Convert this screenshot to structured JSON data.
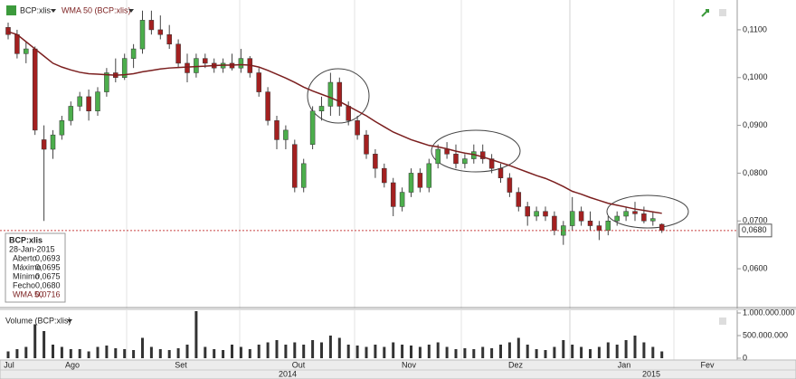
{
  "chart_data": {
    "type": "candlestick",
    "header": {
      "symbol": "BCP:xlis",
      "indicator": "WMA 50 (BCP:xlis)",
      "volume_title": "Volume (BCP:xlis)"
    },
    "ohlc": [
      [
        0.1105,
        0.1115,
        0.108,
        0.109
      ],
      [
        0.109,
        0.11,
        0.104,
        0.105
      ],
      [
        0.105,
        0.1075,
        0.103,
        0.106
      ],
      [
        0.106,
        0.1065,
        0.088,
        0.089
      ],
      [
        0.087,
        0.09,
        0.07,
        0.085
      ],
      [
        0.085,
        0.089,
        0.083,
        0.088
      ],
      [
        0.088,
        0.092,
        0.087,
        0.091
      ],
      [
        0.091,
        0.095,
        0.09,
        0.094
      ],
      [
        0.094,
        0.097,
        0.093,
        0.096
      ],
      [
        0.096,
        0.0975,
        0.091,
        0.093
      ],
      [
        0.093,
        0.098,
        0.092,
        0.097
      ],
      [
        0.097,
        0.102,
        0.096,
        0.101
      ],
      [
        0.101,
        0.104,
        0.099,
        0.1
      ],
      [
        0.1,
        0.105,
        0.0995,
        0.104
      ],
      [
        0.104,
        0.107,
        0.102,
        0.106
      ],
      [
        0.106,
        0.114,
        0.105,
        0.112
      ],
      [
        0.112,
        0.114,
        0.109,
        0.11
      ],
      [
        0.11,
        0.113,
        0.108,
        0.109
      ],
      [
        0.109,
        0.111,
        0.106,
        0.107
      ],
      [
        0.107,
        0.108,
        0.102,
        0.103
      ],
      [
        0.103,
        0.105,
        0.099,
        0.101
      ],
      [
        0.101,
        0.105,
        0.1,
        0.104
      ],
      [
        0.104,
        0.105,
        0.102,
        0.103
      ],
      [
        0.103,
        0.104,
        0.101,
        0.102
      ],
      [
        0.102,
        0.104,
        0.101,
        0.103
      ],
      [
        0.103,
        0.105,
        0.1015,
        0.102
      ],
      [
        0.102,
        0.106,
        0.101,
        0.104
      ],
      [
        0.104,
        0.1045,
        0.1,
        0.101
      ],
      [
        0.101,
        0.102,
        0.096,
        0.097
      ],
      [
        0.097,
        0.098,
        0.09,
        0.091
      ],
      [
        0.091,
        0.092,
        0.085,
        0.087
      ],
      [
        0.087,
        0.09,
        0.085,
        0.089
      ],
      [
        0.086,
        0.087,
        0.076,
        0.077
      ],
      [
        0.077,
        0.083,
        0.076,
        0.082
      ],
      [
        0.086,
        0.094,
        0.085,
        0.093
      ],
      [
        0.093,
        0.096,
        0.091,
        0.094
      ],
      [
        0.094,
        0.101,
        0.092,
        0.099
      ],
      [
        0.099,
        0.1,
        0.092,
        0.094
      ],
      [
        0.094,
        0.095,
        0.09,
        0.091
      ],
      [
        0.091,
        0.092,
        0.087,
        0.088
      ],
      [
        0.088,
        0.089,
        0.083,
        0.084
      ],
      [
        0.084,
        0.085,
        0.079,
        0.081
      ],
      [
        0.081,
        0.082,
        0.077,
        0.078
      ],
      [
        0.078,
        0.079,
        0.071,
        0.073
      ],
      [
        0.073,
        0.077,
        0.072,
        0.076
      ],
      [
        0.076,
        0.081,
        0.075,
        0.08
      ],
      [
        0.08,
        0.081,
        0.076,
        0.077
      ],
      [
        0.077,
        0.083,
        0.076,
        0.082
      ],
      [
        0.082,
        0.086,
        0.081,
        0.085
      ],
      [
        0.085,
        0.0865,
        0.083,
        0.084
      ],
      [
        0.084,
        0.086,
        0.081,
        0.082
      ],
      [
        0.082,
        0.084,
        0.081,
        0.083
      ],
      [
        0.083,
        0.086,
        0.082,
        0.0845
      ],
      [
        0.0845,
        0.086,
        0.082,
        0.083
      ],
      [
        0.083,
        0.084,
        0.08,
        0.081
      ],
      [
        0.081,
        0.082,
        0.078,
        0.079
      ],
      [
        0.079,
        0.08,
        0.075,
        0.076
      ],
      [
        0.076,
        0.077,
        0.072,
        0.073
      ],
      [
        0.073,
        0.074,
        0.069,
        0.071
      ],
      [
        0.071,
        0.073,
        0.07,
        0.072
      ],
      [
        0.072,
        0.073,
        0.07,
        0.071
      ],
      [
        0.071,
        0.072,
        0.067,
        0.068
      ],
      [
        0.067,
        0.07,
        0.065,
        0.069
      ],
      [
        0.069,
        0.075,
        0.068,
        0.072
      ],
      [
        0.072,
        0.073,
        0.069,
        0.07
      ],
      [
        0.07,
        0.072,
        0.068,
        0.069
      ],
      [
        0.069,
        0.07,
        0.066,
        0.068
      ],
      [
        0.068,
        0.071,
        0.067,
        0.07
      ],
      [
        0.07,
        0.072,
        0.069,
        0.071
      ],
      [
        0.071,
        0.073,
        0.07,
        0.072
      ],
      [
        0.072,
        0.074,
        0.07,
        0.0715
      ],
      [
        0.0715,
        0.073,
        0.0695,
        0.07
      ],
      [
        0.07,
        0.072,
        0.069,
        0.0705
      ],
      [
        0.0693,
        0.0695,
        0.0675,
        0.068
      ]
    ],
    "wma": {
      "name": "WMA 50",
      "color": "#7b1f1f",
      "values": [
        0.1096,
        0.109,
        0.1075,
        0.106,
        0.1045,
        0.103,
        0.1022,
        0.1016,
        0.1011,
        0.1008,
        0.1007,
        0.1006,
        0.1005,
        0.1006,
        0.1008,
        0.1012,
        0.1015,
        0.1018,
        0.102,
        0.1021,
        0.1022,
        0.1023,
        0.1024,
        0.1025,
        0.1026,
        0.1026,
        0.1027,
        0.1026,
        0.1022,
        0.1015,
        0.1007,
        0.0999,
        0.099,
        0.098,
        0.0972,
        0.0965,
        0.0958,
        0.095,
        0.094,
        0.093,
        0.092,
        0.0908,
        0.0897,
        0.0886,
        0.0878,
        0.087,
        0.0864,
        0.0858,
        0.0855,
        0.0851,
        0.0846,
        0.0842,
        0.0839,
        0.0834,
        0.0828,
        0.0822,
        0.0816,
        0.0809,
        0.0802,
        0.0795,
        0.0789,
        0.0781,
        0.0772,
        0.0762,
        0.0756,
        0.0749,
        0.0743,
        0.0737,
        0.0733,
        0.0729,
        0.0725,
        0.0722,
        0.0719,
        0.0716
      ]
    },
    "volume": [
      150000000,
      200000000,
      250000000,
      750000000,
      600000000,
      300000000,
      250000000,
      200000000,
      200000000,
      150000000,
      250000000,
      280000000,
      220000000,
      200000000,
      180000000,
      450000000,
      250000000,
      200000000,
      180000000,
      220000000,
      300000000,
      1040000000,
      250000000,
      200000000,
      180000000,
      300000000,
      250000000,
      200000000,
      300000000,
      350000000,
      400000000,
      300000000,
      350000000,
      300000000,
      400000000,
      350000000,
      500000000,
      450000000,
      300000000,
      280000000,
      250000000,
      300000000,
      250000000,
      350000000,
      300000000,
      280000000,
      250000000,
      300000000,
      350000000,
      250000000,
      200000000,
      220000000,
      200000000,
      250000000,
      220000000,
      300000000,
      350000000,
      450000000,
      300000000,
      200000000,
      180000000,
      250000000,
      400000000,
      300000000,
      250000000,
      200000000,
      250000000,
      350000000,
      300000000,
      400000000,
      500000000,
      350000000,
      250000000,
      150000000
    ],
    "up_color": "#4cae4c",
    "down_color": "#a32020",
    "ylim": [
      0.05226,
      0.11623
    ],
    "yticks": [
      {
        "value": 0.06,
        "label": "0,0600"
      },
      {
        "value": 0.07,
        "label": "0,0700"
      },
      {
        "value": 0.08,
        "label": "0,0800"
      },
      {
        "value": 0.09,
        "label": "0,0900"
      },
      {
        "value": 0.1,
        "label": "0,1000"
      },
      {
        "value": 0.11,
        "label": "0,1100"
      }
    ],
    "last_price": {
      "value": 0.068,
      "label": "0,0680"
    },
    "vol_ylim": [
      0,
      1060000000
    ],
    "vol_yticks": [
      0,
      {
        "value": 500000000,
        "label": "500.000.000"
      },
      {
        "value": 1000000000,
        "label": "1.000.000.000"
      }
    ],
    "months": [
      "Jul",
      "Ago",
      "Set",
      "Out",
      "Nov",
      "Dez",
      "Jan",
      "Fev"
    ],
    "years": [
      "2014",
      "2015"
    ],
    "info_box": {
      "title": "BCP:xlis",
      "date": "28-Jan-2015",
      "rows": [
        [
          "Aberto",
          "0,0693"
        ],
        [
          "Máximo",
          "0,0695"
        ],
        [
          "Mínimo",
          "0,0675"
        ],
        [
          "Fecho",
          "0,0680"
        ],
        [
          "WMA 50",
          "0,0716"
        ]
      ]
    }
  }
}
